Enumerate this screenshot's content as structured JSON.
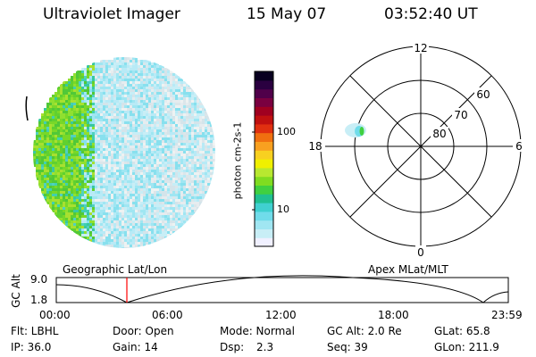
{
  "header": {
    "instrument": "Ultraviolet Imager",
    "date": "15 May 07",
    "time": "03:52:40 UT"
  },
  "colorbar": {
    "label": "photon cm-2s-1",
    "ticks": [
      "100",
      "10"
    ],
    "colors": [
      "#f0f0ff",
      "#c8eef6",
      "#a0e6f2",
      "#70dcea",
      "#40d0d0",
      "#20c090",
      "#40d040",
      "#80dc20",
      "#b8e830",
      "#f0f000",
      "#f8d020",
      "#f8a020",
      "#f07010",
      "#e03010",
      "#c01010",
      "#a00020",
      "#7a0040",
      "#50004a",
      "#2a0040",
      "#080020"
    ]
  },
  "polar": {
    "mlt_labels": [
      "12",
      "6",
      "0",
      "18"
    ],
    "lat_labels": [
      "60",
      "70",
      "80"
    ]
  },
  "timeline": {
    "left_title": "Geographic Lat/Lon",
    "right_title": "Apex  MLat/MLT",
    "y_axis_label": "GC Alt",
    "y_ticks": [
      "9.0",
      "1.8"
    ],
    "time_ticks": [
      "00:00",
      "06:00",
      "12:00",
      "18:00",
      "23:59"
    ],
    "cursor_color": "#ff0000"
  },
  "info": {
    "flt": "Flt: LBHL",
    "door": "Door: Open",
    "mode": "Mode: Normal",
    "gcalt": "GC Alt: 2.0 Re",
    "glat": "GLat:  65.8",
    "ip": "IP: 36.0",
    "gain": "Gain: 14",
    "dsp_label": "Dsp:",
    "dsp_value": "2.3",
    "seq": "Seq: 39",
    "glon": "GLon: 211.9"
  }
}
